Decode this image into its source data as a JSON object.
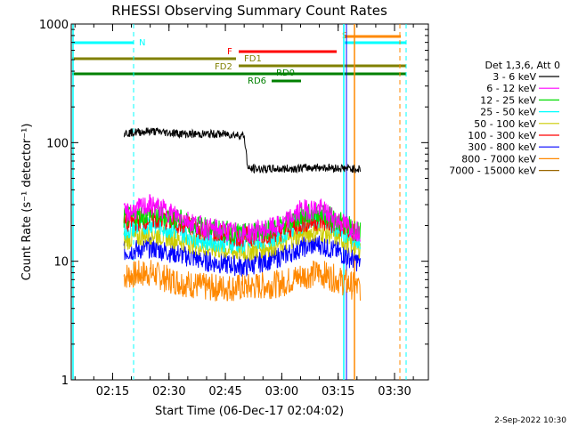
{
  "chart_data": {
    "type": "line",
    "title": "RHESSI Observing Summary Count Rates",
    "xlabel": "Start Time (06-Dec-17 02:04:02)",
    "ylabel": "Count Rate (s⁻¹ detector⁻¹)",
    "yscale": "log",
    "ylim": [
      1,
      1000
    ],
    "xlim": [
      "02:04",
      "03:39"
    ],
    "x_ticks": [
      "02:15",
      "02:30",
      "02:45",
      "03:00",
      "03:15",
      "03:30"
    ],
    "y_ticks": [
      "1",
      "10",
      "100",
      "1000"
    ],
    "legend_title": "Det 1,3,6, Att 0",
    "legend_placement": "right",
    "series": [
      {
        "name": "3 - 6 keV",
        "color": "#000000",
        "x": [
          "02:18",
          "02:25",
          "02:35",
          "02:45",
          "02:50",
          "02:51",
          "03:00",
          "03:10",
          "03:20",
          "03:21"
        ],
        "values": [
          120,
          125,
          118,
          118,
          115,
          60,
          60,
          62,
          60,
          60
        ]
      },
      {
        "name": "6 - 12 keV",
        "color": "#ff00ff",
        "x": [
          "02:18",
          "02:25",
          "02:30",
          "02:40",
          "02:50",
          "03:00",
          "03:05",
          "03:10",
          "03:15",
          "03:20",
          "03:21"
        ],
        "values": [
          25,
          30,
          26,
          19,
          17,
          20,
          27,
          28,
          22,
          18,
          18
        ]
      },
      {
        "name": "12 - 25 keV",
        "color": "#00dd00",
        "x": [
          "02:18",
          "02:25",
          "02:30",
          "02:40",
          "02:50",
          "03:00",
          "03:05",
          "03:10",
          "03:15",
          "03:20",
          "03:21"
        ],
        "values": [
          23,
          25,
          24,
          19,
          17,
          20,
          24,
          26,
          22,
          18,
          18
        ]
      },
      {
        "name": "25 - 50 keV",
        "color": "#00ffff",
        "x": [
          "02:18",
          "02:25",
          "02:30",
          "02:40",
          "02:50",
          "03:00",
          "03:05",
          "03:10",
          "03:15",
          "03:20",
          "03:21"
        ],
        "values": [
          18,
          21,
          19,
          15,
          14,
          17,
          21,
          23,
          19,
          15,
          15
        ]
      },
      {
        "name": "50 - 100 keV",
        "color": "#cccc00",
        "x": [
          "02:18",
          "02:25",
          "02:30",
          "02:40",
          "02:50",
          "03:00",
          "03:05",
          "03:10",
          "03:15",
          "03:20",
          "03:21"
        ],
        "values": [
          15,
          17,
          16,
          13,
          12,
          14,
          17,
          18,
          16,
          13,
          13
        ]
      },
      {
        "name": "100 - 300 keV",
        "color": "#ff0000",
        "x": [
          "02:18",
          "02:25",
          "02:30",
          "02:40",
          "02:50",
          "03:00",
          "03:05",
          "03:10",
          "03:15",
          "03:20",
          "03:21"
        ],
        "values": [
          21,
          23,
          22,
          18,
          16,
          18,
          21,
          22,
          20,
          17,
          17
        ]
      },
      {
        "name": "300 - 800 keV",
        "color": "#0000ff",
        "x": [
          "02:18",
          "02:25",
          "02:30",
          "02:40",
          "02:50",
          "03:00",
          "03:05",
          "03:10",
          "03:15",
          "03:20",
          "03:21"
        ],
        "values": [
          12,
          13,
          12,
          10,
          9,
          11,
          13,
          14,
          12,
          10,
          10
        ]
      },
      {
        "name": "800 - 7000 keV",
        "color": "#ff8800",
        "x": [
          "02:18",
          "02:25",
          "02:30",
          "02:40",
          "02:50",
          "03:00",
          "03:05",
          "03:10",
          "03:15",
          "03:20",
          "03:21"
        ],
        "values": [
          7.5,
          8,
          7,
          6,
          6,
          6.5,
          7.5,
          8,
          7,
          6,
          6
        ]
      },
      {
        "name": "7000 - 15000 keV",
        "color": "#996600",
        "x": [],
        "values": []
      }
    ],
    "annotations": {
      "labels": [
        {
          "text": "N",
          "color": "#00ffff"
        },
        {
          "text": "S",
          "color": "#ff8800"
        },
        {
          "text": "F",
          "color": "#ff0000"
        },
        {
          "text": "FD1",
          "color": "#808000"
        },
        {
          "text": "FD2",
          "color": "#808000"
        },
        {
          "text": "RD0",
          "color": "#008000"
        },
        {
          "text": "RD6",
          "color": "#008000"
        }
      ]
    },
    "timestamp": "2-Sep-2022 10:30"
  }
}
